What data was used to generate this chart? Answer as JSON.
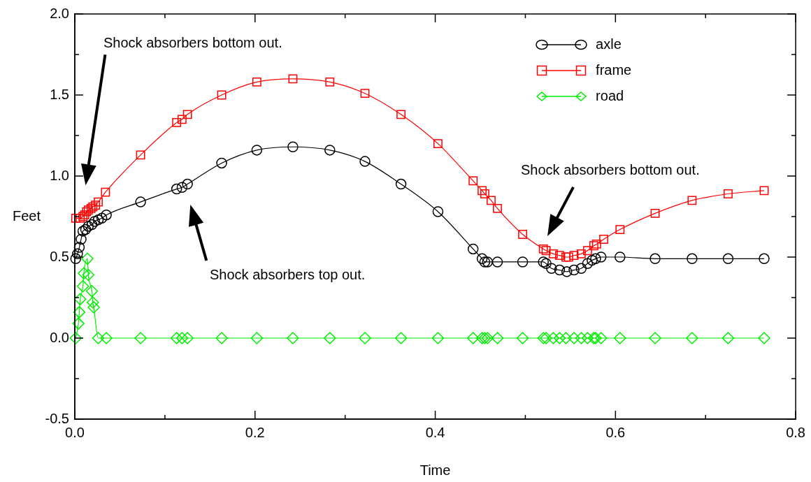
{
  "chart_data": {
    "type": "line",
    "xlabel": "Time",
    "ylabel": "Feet",
    "xlim": [
      0,
      0.8
    ],
    "ylim": [
      -0.5,
      2.0
    ],
    "xticks": [
      {
        "value": 0,
        "label": "0.0"
      },
      {
        "value": 0.1,
        "label": null
      },
      {
        "value": 0.2,
        "label": "0.2"
      },
      {
        "value": 0.3,
        "label": null
      },
      {
        "value": 0.4,
        "label": "0.4"
      },
      {
        "value": 0.5,
        "label": null
      },
      {
        "value": 0.6,
        "label": "0.6"
      },
      {
        "value": 0.7,
        "label": null
      },
      {
        "value": 0.8,
        "label": "0.8"
      }
    ],
    "yticks": [
      {
        "value": -0.5,
        "label": "-0.5"
      },
      {
        "value": -0.25,
        "label": null
      },
      {
        "value": 0,
        "label": "0.0"
      },
      {
        "value": 0.25,
        "label": null
      },
      {
        "value": 0.5,
        "label": "0.5"
      },
      {
        "value": 0.75,
        "label": null
      },
      {
        "value": 1.0,
        "label": "1.0"
      },
      {
        "value": 1.25,
        "label": null
      },
      {
        "value": 1.5,
        "label": "1.5"
      },
      {
        "value": 1.75,
        "label": null
      },
      {
        "value": 2.0,
        "label": "2.0"
      }
    ],
    "grid": false,
    "legend": "top right",
    "series": [
      {
        "name": "axle",
        "color": "#000000",
        "marker": "circle",
        "x": [
          0.001,
          0.003,
          0.005,
          0.007,
          0.009,
          0.012,
          0.015,
          0.019,
          0.022,
          0.026,
          0.03,
          0.035,
          0.073,
          0.113,
          0.119,
          0.125,
          0.163,
          0.202,
          0.242,
          0.283,
          0.322,
          0.362,
          0.403,
          0.442,
          0.452,
          0.455,
          0.458,
          0.469,
          0.497,
          0.52,
          0.523,
          0.529,
          0.538,
          0.546,
          0.554,
          0.562,
          0.569,
          0.574,
          0.578,
          0.584,
          0.605,
          0.644,
          0.685,
          0.725,
          0.765
        ],
        "values": [
          0.49,
          0.52,
          0.56,
          0.61,
          0.66,
          0.67,
          0.69,
          0.7,
          0.72,
          0.73,
          0.74,
          0.76,
          0.84,
          0.92,
          0.93,
          0.95,
          1.08,
          1.16,
          1.18,
          1.16,
          1.09,
          0.95,
          0.78,
          0.55,
          0.49,
          0.47,
          0.47,
          0.47,
          0.47,
          0.47,
          0.46,
          0.43,
          0.42,
          0.41,
          0.42,
          0.43,
          0.46,
          0.48,
          0.49,
          0.5,
          0.5,
          0.49,
          0.49,
          0.49,
          0.49
        ]
      },
      {
        "name": "frame",
        "color": "#ff0000",
        "marker": "square",
        "x": [
          0.001,
          0.006,
          0.009,
          0.011,
          0.013,
          0.015,
          0.018,
          0.02,
          0.023,
          0.026,
          0.034,
          0.073,
          0.113,
          0.119,
          0.125,
          0.163,
          0.202,
          0.242,
          0.283,
          0.322,
          0.362,
          0.403,
          0.442,
          0.452,
          0.455,
          0.462,
          0.469,
          0.497,
          0.52,
          0.523,
          0.531,
          0.538,
          0.545,
          0.548,
          0.554,
          0.562,
          0.569,
          0.576,
          0.579,
          0.587,
          0.605,
          0.644,
          0.685,
          0.725,
          0.765
        ],
        "values": [
          0.74,
          0.74,
          0.75,
          0.76,
          0.78,
          0.79,
          0.8,
          0.81,
          0.82,
          0.84,
          0.9,
          1.13,
          1.33,
          1.35,
          1.38,
          1.5,
          1.58,
          1.6,
          1.58,
          1.51,
          1.38,
          1.2,
          0.97,
          0.91,
          0.89,
          0.85,
          0.8,
          0.64,
          0.55,
          0.54,
          0.52,
          0.51,
          0.5,
          0.5,
          0.51,
          0.52,
          0.54,
          0.57,
          0.58,
          0.61,
          0.67,
          0.77,
          0.85,
          0.89,
          0.91
        ]
      },
      {
        "name": "road",
        "color": "#00ee00",
        "marker": "diamond",
        "x": [
          0.001,
          0.004,
          0.005,
          0.006,
          0.009,
          0.01,
          0.014,
          0.015,
          0.019,
          0.02,
          0.021,
          0.026,
          0.035,
          0.073,
          0.113,
          0.119,
          0.125,
          0.163,
          0.202,
          0.242,
          0.283,
          0.322,
          0.362,
          0.403,
          0.442,
          0.452,
          0.455,
          0.458,
          0.469,
          0.497,
          0.52,
          0.523,
          0.531,
          0.538,
          0.545,
          0.554,
          0.562,
          0.569,
          0.576,
          0.578,
          0.584,
          0.605,
          0.644,
          0.685,
          0.725,
          0.765
        ],
        "values": [
          0,
          0.09,
          0.16,
          0.24,
          0.32,
          0.4,
          0.49,
          0.39,
          0.29,
          0.22,
          0.19,
          0,
          0,
          0,
          0,
          0,
          0,
          0,
          0,
          0,
          0,
          0,
          0,
          0,
          0,
          0,
          0,
          0,
          0,
          0,
          0,
          0,
          0,
          0,
          0,
          0,
          0,
          0,
          0,
          0,
          0,
          0,
          0,
          0,
          0,
          0
        ]
      }
    ],
    "annotations": [
      "Shock absorbers bottom out.",
      "Shock absorbers top out.",
      "Shock absorbers bottom out."
    ]
  }
}
